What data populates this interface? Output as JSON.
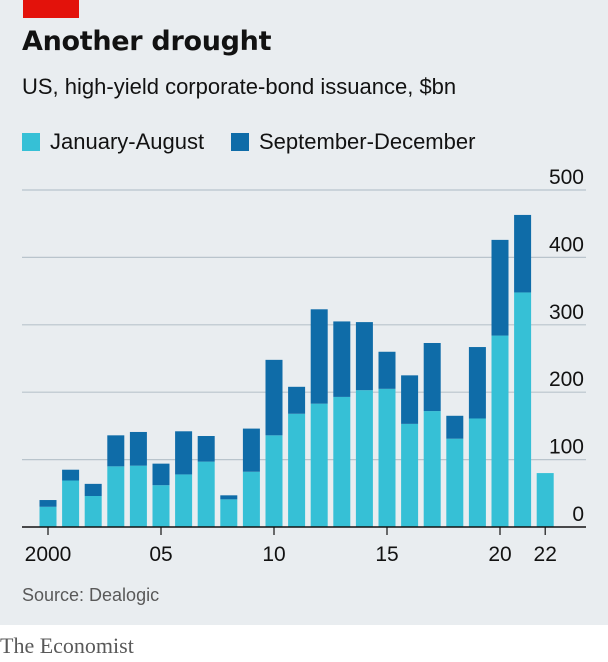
{
  "header": {
    "title": "Another drought",
    "subtitle": "US, high-yield corporate-bond issuance, $bn"
  },
  "legend": [
    {
      "label": "January-August",
      "color": "#36c0d6"
    },
    {
      "label": "September-December",
      "color": "#0f6ca8"
    }
  ],
  "footer": {
    "source": "Source: Dealogic",
    "publisher": "The Economist"
  },
  "chart_data": {
    "type": "bar",
    "stacked": true,
    "title": "Another drought",
    "subtitle": "US, high-yield corporate-bond issuance, $bn",
    "categories": [
      "2000",
      "2001",
      "2002",
      "2003",
      "2004",
      "2005",
      "2006",
      "2007",
      "2008",
      "2009",
      "2010",
      "2011",
      "2012",
      "2013",
      "2014",
      "2015",
      "2016",
      "2017",
      "2018",
      "2019",
      "2020",
      "2021",
      "2022"
    ],
    "series": [
      {
        "name": "January-August",
        "color": "#36c0d6",
        "values": [
          30,
          69,
          46,
          90,
          91,
          62,
          78,
          97,
          41,
          82,
          136,
          168,
          183,
          193,
          203,
          205,
          153,
          172,
          131,
          161,
          284,
          348,
          80
        ]
      },
      {
        "name": "September-December",
        "color": "#0f6ca8",
        "values": [
          10,
          16,
          18,
          46,
          50,
          32,
          64,
          38,
          6,
          64,
          112,
          40,
          140,
          112,
          101,
          55,
          72,
          101,
          34,
          106,
          142,
          115,
          null
        ]
      }
    ],
    "x_tick_labels": [
      {
        "label": "2000",
        "category": "2000"
      },
      {
        "label": "05",
        "category": "2005"
      },
      {
        "label": "10",
        "category": "2010"
      },
      {
        "label": "15",
        "category": "2015"
      },
      {
        "label": "20",
        "category": "2020"
      },
      {
        "label": "22",
        "category": "2022"
      }
    ],
    "y_ticks": [
      0,
      100,
      200,
      300,
      400,
      500
    ],
    "ylim": [
      0,
      500
    ],
    "ylabel": "",
    "xlabel": "",
    "y_axis_side": "right",
    "grid": true,
    "legend_position": "top"
  }
}
